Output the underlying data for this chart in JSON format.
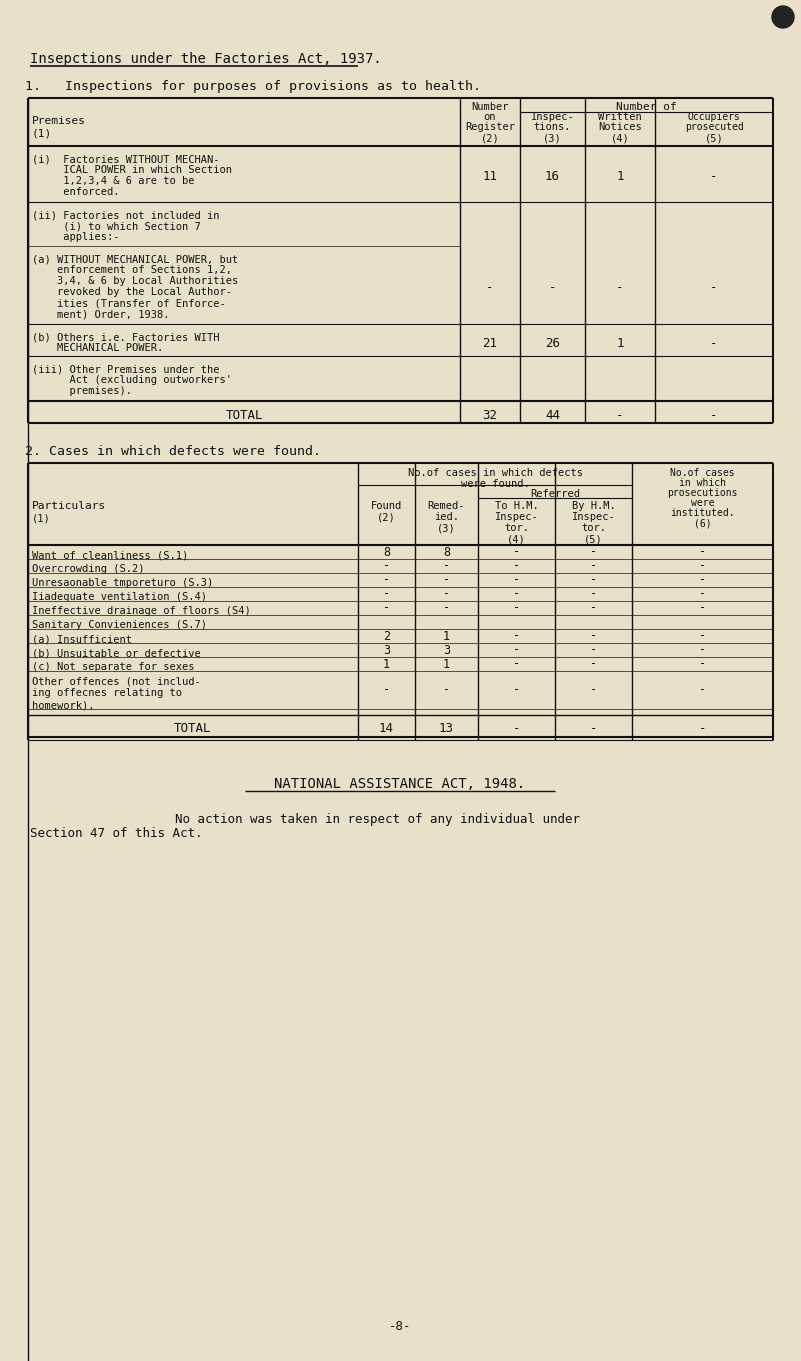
{
  "bg_color": "#e8e0c8",
  "text_color": "#1a1a1a",
  "page_title": "Insepctions under the Factories Act, 1937.",
  "section1_title": "1.   Inspections for purposes of provisions as to health.",
  "section2_title": "2. Cases in which defects were found.",
  "national_assistance_title": "NATIONAL ASSISTANCE ACT, 1948.",
  "national_assistance_line1": "        No action was taken in respect of any individual under",
  "national_assistance_line2": "Section 47 of this Act.",
  "page_number": "-8-"
}
